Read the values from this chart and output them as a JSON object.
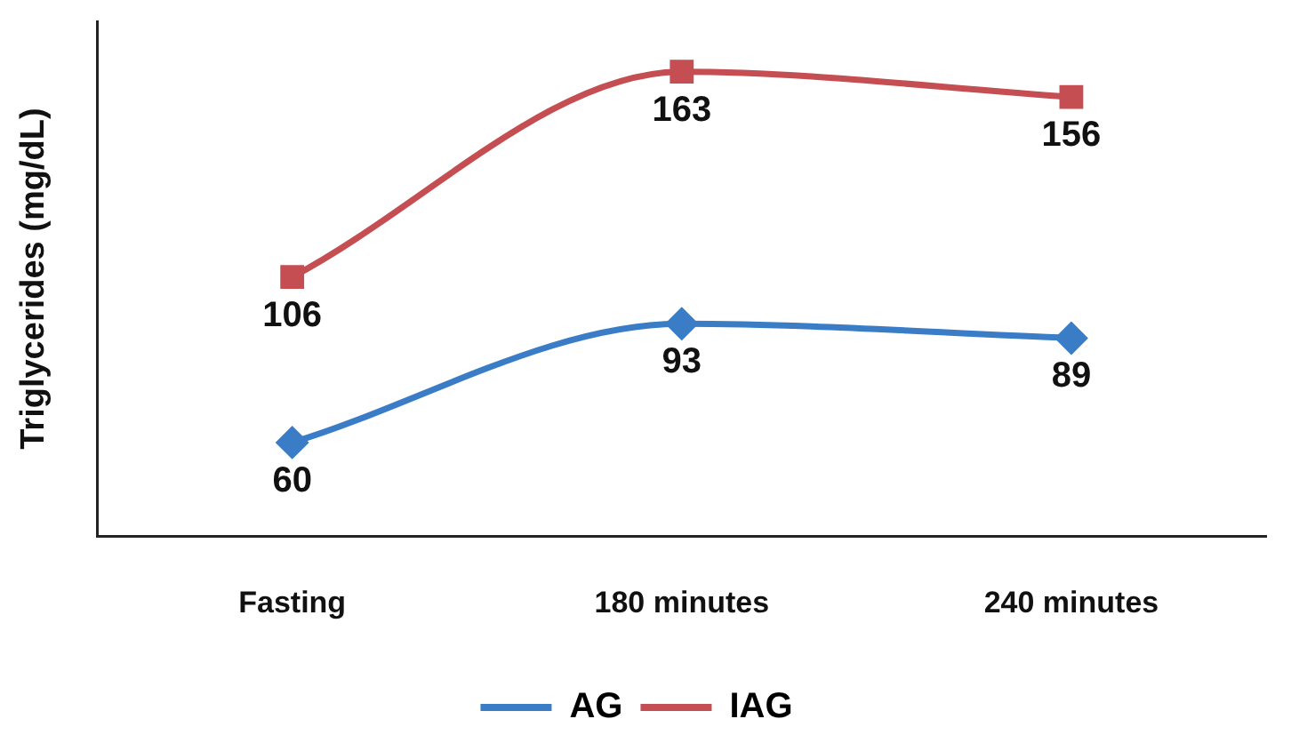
{
  "chart_data": {
    "type": "line",
    "ylabel": "Triglycerides (mg/dL)",
    "categories": [
      "Fasting",
      "180 minutes",
      "240 minutes"
    ],
    "series": [
      {
        "name": "AG",
        "color": "#3a7dc6",
        "values": [
          60,
          93,
          89
        ],
        "marker": "diamond"
      },
      {
        "name": "IAG",
        "color": "#c44e52",
        "values": [
          106,
          163,
          156
        ],
        "marker": "square"
      }
    ],
    "ylim": [
      34,
      177
    ],
    "tick_labels": "x",
    "data_labels": true,
    "legend": "bottom",
    "grid": false
  }
}
